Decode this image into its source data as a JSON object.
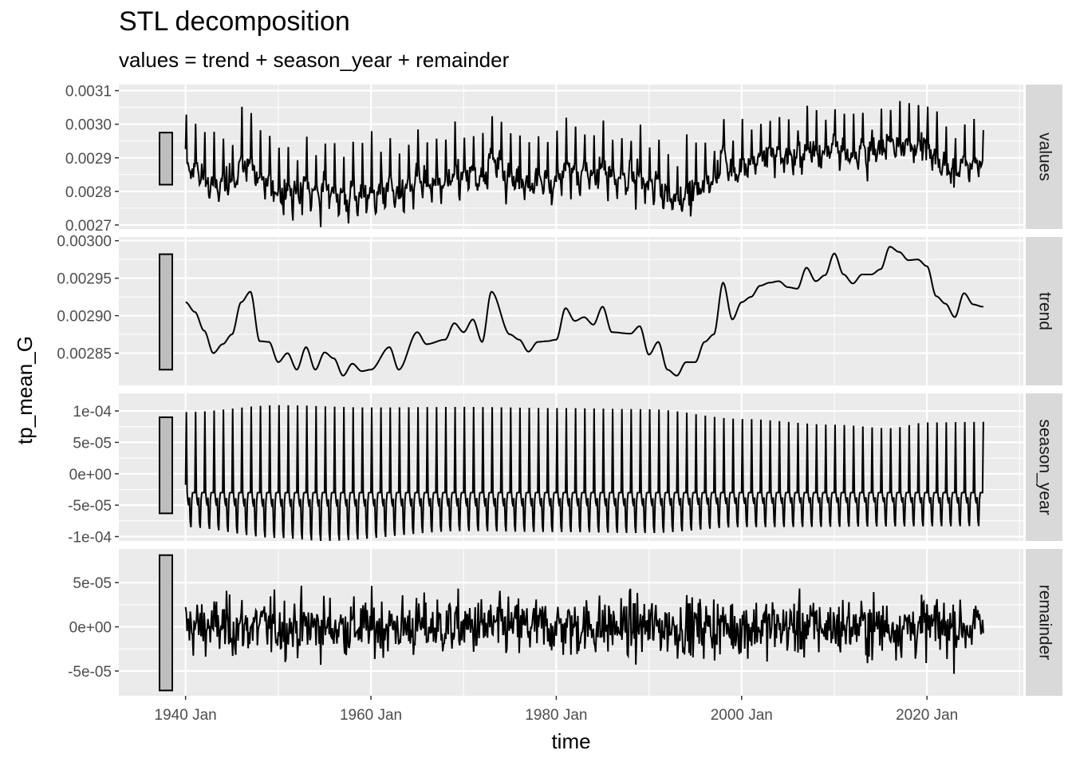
{
  "chart_data": {
    "type": "line",
    "title": "STL decomposition",
    "subtitle": "values = trend + season_year + remainder",
    "xlabel": "time",
    "ylabel": "tp_mean_G",
    "x_range": [
      "1940 Jan",
      "2026 Feb"
    ],
    "xlim": [
      1932.8,
      2030.4
    ],
    "x_ticks": [
      {
        "value": 1940,
        "label": "1940 Jan"
      },
      {
        "value": 1960,
        "label": "1960 Jan"
      },
      {
        "value": 1980,
        "label": "1980 Jan"
      },
      {
        "value": 2000,
        "label": "2000 Jan"
      },
      {
        "value": 2020,
        "label": "2020 Jan"
      }
    ],
    "x_minor": [
      1950,
      1970,
      1990,
      2010,
      2030
    ],
    "grid": true,
    "legend": "none",
    "panels": [
      {
        "name": "values",
        "ylim": [
          0.002688,
          0.003118
        ],
        "y_ticks": [
          {
            "value": 0.0027,
            "label": "0.0027"
          },
          {
            "value": 0.0028,
            "label": "0.0028"
          },
          {
            "value": 0.0029,
            "label": "0.0029"
          },
          {
            "value": 0.003,
            "label": "0.0030"
          },
          {
            "value": 0.0031,
            "label": "0.0031"
          }
        ],
        "range_bar": [
          0.00282,
          0.002975
        ],
        "series": {
          "trend_knots": [
            [
              1940,
              0.002918
            ],
            [
              1941,
              0.002905
            ],
            [
              1942,
              0.00288
            ],
            [
              1943,
              0.00285
            ],
            [
              1944,
              0.002862
            ],
            [
              1945,
              0.002875
            ],
            [
              1946,
              0.002918
            ],
            [
              1947,
              0.002932
            ],
            [
              1948,
              0.002866
            ],
            [
              1949,
              0.002865
            ],
            [
              1950,
              0.002838
            ],
            [
              1951,
              0.00285
            ],
            [
              1952,
              0.002828
            ],
            [
              1953,
              0.002858
            ],
            [
              1954,
              0.002828
            ],
            [
              1955,
              0.002851
            ],
            [
              1956,
              0.002843
            ],
            [
              1957,
              0.00282
            ],
            [
              1958,
              0.002836
            ],
            [
              1959,
              0.002826
            ],
            [
              1960,
              0.002828
            ],
            [
              1962,
              0.002858
            ],
            [
              1963,
              0.002828
            ],
            [
              1965,
              0.002878
            ],
            [
              1966,
              0.002862
            ],
            [
              1968,
              0.002868
            ],
            [
              1969,
              0.00289
            ],
            [
              1970,
              0.002878
            ],
            [
              1971,
              0.002895
            ],
            [
              1972,
              0.002865
            ],
            [
              1973,
              0.002932
            ],
            [
              1975,
              0.002875
            ],
            [
              1976,
              0.002868
            ],
            [
              1977,
              0.002852
            ],
            [
              1978,
              0.002865
            ],
            [
              1979,
              0.002866
            ],
            [
              1980,
              0.002868
            ],
            [
              1981,
              0.00291
            ],
            [
              1982,
              0.002893
            ],
            [
              1983,
              0.002898
            ],
            [
              1984,
              0.002888
            ],
            [
              1985,
              0.002912
            ],
            [
              1986,
              0.002878
            ],
            [
              1988,
              0.002876
            ],
            [
              1989,
              0.002886
            ],
            [
              1990,
              0.002848
            ],
            [
              1991,
              0.002865
            ],
            [
              1992,
              0.002828
            ],
            [
              1993,
              0.00282
            ],
            [
              1994,
              0.002838
            ],
            [
              1995,
              0.002838
            ],
            [
              1996,
              0.002865
            ],
            [
              1997,
              0.002875
            ],
            [
              1998,
              0.002944
            ],
            [
              1999,
              0.002895
            ],
            [
              2000,
              0.002918
            ],
            [
              2001,
              0.002925
            ],
            [
              2002,
              0.00294
            ],
            [
              2003,
              0.002944
            ],
            [
              2004,
              0.002946
            ],
            [
              2005,
              0.002938
            ],
            [
              2006,
              0.002936
            ],
            [
              2007,
              0.002964
            ],
            [
              2008,
              0.002946
            ],
            [
              2009,
              0.002954
            ],
            [
              2010,
              0.002983
            ],
            [
              2011,
              0.002955
            ],
            [
              2012,
              0.002943
            ],
            [
              2013,
              0.002955
            ],
            [
              2014,
              0.002955
            ],
            [
              2015,
              0.002962
            ],
            [
              2016,
              0.002992
            ],
            [
              2017,
              0.002985
            ],
            [
              2018,
              0.002974
            ],
            [
              2019,
              0.002975
            ],
            [
              2020,
              0.002966
            ],
            [
              2021,
              0.002926
            ],
            [
              2022,
              0.002916
            ],
            [
              2023,
              0.002898
            ],
            [
              2024,
              0.00293
            ],
            [
              2025,
              0.002915
            ],
            [
              2026,
              0.002912
            ]
          ],
          "season_amp": [
            [
              1940,
              0.0001
            ],
            [
              1960,
              0.00011
            ],
            [
              1980,
              0.000105
            ],
            [
              2000,
              9e-05
            ],
            [
              2015,
              7.5e-05
            ],
            [
              2026,
              8.5e-05
            ]
          ],
          "remainder_sd": 2.8e-05,
          "min": 0.0027,
          "max": 0.0031
        }
      },
      {
        "name": "trend",
        "ylim": [
          0.002807,
          0.003005
        ],
        "y_ticks": [
          {
            "value": 0.00285,
            "label": "0.00285"
          },
          {
            "value": 0.0029,
            "label": "0.00290"
          },
          {
            "value": 0.00295,
            "label": "0.00295"
          },
          {
            "value": 0.003,
            "label": "0.00300"
          }
        ],
        "range_bar": [
          0.002828,
          0.002982
        ],
        "series": {
          "points": [
            [
              1940,
              0.002918
            ],
            [
              1941,
              0.002905
            ],
            [
              1942,
              0.00288
            ],
            [
              1943,
              0.00285
            ],
            [
              1944,
              0.002862
            ],
            [
              1945,
              0.002875
            ],
            [
              1946,
              0.002918
            ],
            [
              1947,
              0.002932
            ],
            [
              1948,
              0.002866
            ],
            [
              1949,
              0.002865
            ],
            [
              1950,
              0.002838
            ],
            [
              1951,
              0.00285
            ],
            [
              1952,
              0.002828
            ],
            [
              1953,
              0.002858
            ],
            [
              1954,
              0.002828
            ],
            [
              1955,
              0.002851
            ],
            [
              1956,
              0.002843
            ],
            [
              1957,
              0.00282
            ],
            [
              1958,
              0.002836
            ],
            [
              1959,
              0.002826
            ],
            [
              1960,
              0.002828
            ],
            [
              1962,
              0.002858
            ],
            [
              1963,
              0.002828
            ],
            [
              1965,
              0.002878
            ],
            [
              1966,
              0.002862
            ],
            [
              1968,
              0.002868
            ],
            [
              1969,
              0.00289
            ],
            [
              1970,
              0.002878
            ],
            [
              1971,
              0.002895
            ],
            [
              1972,
              0.002865
            ],
            [
              1973,
              0.002932
            ],
            [
              1975,
              0.002875
            ],
            [
              1976,
              0.002868
            ],
            [
              1977,
              0.002852
            ],
            [
              1978,
              0.002865
            ],
            [
              1979,
              0.002866
            ],
            [
              1980,
              0.002868
            ],
            [
              1981,
              0.00291
            ],
            [
              1982,
              0.002893
            ],
            [
              1983,
              0.002898
            ],
            [
              1984,
              0.002888
            ],
            [
              1985,
              0.002912
            ],
            [
              1986,
              0.002878
            ],
            [
              1988,
              0.002876
            ],
            [
              1989,
              0.002886
            ],
            [
              1990,
              0.002848
            ],
            [
              1991,
              0.002865
            ],
            [
              1992,
              0.002828
            ],
            [
              1993,
              0.00282
            ],
            [
              1994,
              0.002838
            ],
            [
              1995,
              0.002838
            ],
            [
              1996,
              0.002865
            ],
            [
              1997,
              0.002875
            ],
            [
              1998,
              0.002944
            ],
            [
              1999,
              0.002895
            ],
            [
              2000,
              0.002918
            ],
            [
              2001,
              0.002925
            ],
            [
              2002,
              0.00294
            ],
            [
              2003,
              0.002944
            ],
            [
              2004,
              0.002946
            ],
            [
              2005,
              0.002938
            ],
            [
              2006,
              0.002936
            ],
            [
              2007,
              0.002964
            ],
            [
              2008,
              0.002946
            ],
            [
              2009,
              0.002954
            ],
            [
              2010,
              0.002983
            ],
            [
              2011,
              0.002955
            ],
            [
              2012,
              0.002943
            ],
            [
              2013,
              0.002955
            ],
            [
              2014,
              0.002955
            ],
            [
              2015,
              0.002962
            ],
            [
              2016,
              0.002992
            ],
            [
              2017,
              0.002985
            ],
            [
              2018,
              0.002974
            ],
            [
              2019,
              0.002975
            ],
            [
              2020,
              0.002966
            ],
            [
              2021,
              0.002926
            ],
            [
              2022,
              0.002916
            ],
            [
              2023,
              0.002898
            ],
            [
              2024,
              0.00293
            ],
            [
              2025,
              0.002915
            ],
            [
              2026,
              0.002912
            ]
          ]
        }
      },
      {
        "name": "season_year",
        "ylim": [
          -0.000107,
          0.000128
        ],
        "y_ticks": [
          {
            "value": -0.0001,
            "label": "-1e-04"
          },
          {
            "value": -5e-05,
            "label": "-5e-05"
          },
          {
            "value": 0,
            "label": "0e+00"
          },
          {
            "value": 5e-05,
            "label": "5e-05"
          },
          {
            "value": 0.0001,
            "label": "1e-04"
          }
        ],
        "range_bar": [
          -6.3e-05,
          9e-05
        ],
        "series": {
          "period": 1,
          "peak_amp": [
            [
              1940,
              0.00011
            ],
            [
              1950,
              0.000122
            ],
            [
              1960,
              0.000118
            ],
            [
              1970,
              0.000119
            ],
            [
              1980,
              0.000117
            ],
            [
              1990,
              0.000115
            ],
            [
              2000,
              9.8e-05
            ],
            [
              2010,
              8.8e-05
            ],
            [
              2016,
              8.2e-05
            ],
            [
              2020,
              9.2e-05
            ],
            [
              2026,
              9.3e-05
            ]
          ],
          "trough_amp": [
            [
              1940,
              -7e-05
            ],
            [
              1950,
              -9.2e-05
            ],
            [
              1955,
              -9.8e-05
            ],
            [
              1970,
              -7.8e-05
            ],
            [
              1980,
              -8e-05
            ],
            [
              1990,
              -8.2e-05
            ],
            [
              2000,
              -7e-05
            ],
            [
              2026,
              -6.8e-05
            ]
          ]
        }
      },
      {
        "name": "remainder",
        "ylim": [
          -7.8e-05,
          8.8e-05
        ],
        "y_ticks": [
          {
            "value": -5e-05,
            "label": "-5e-05"
          },
          {
            "value": 0,
            "label": "0e+00"
          },
          {
            "value": 5e-05,
            "label": "5e-05"
          }
        ],
        "range_bar": [
          -7.2e-05,
          8.1e-05
        ],
        "series": {
          "sd": 2.5e-05,
          "min": -7.2e-05,
          "max": 8.1e-05
        }
      }
    ]
  }
}
